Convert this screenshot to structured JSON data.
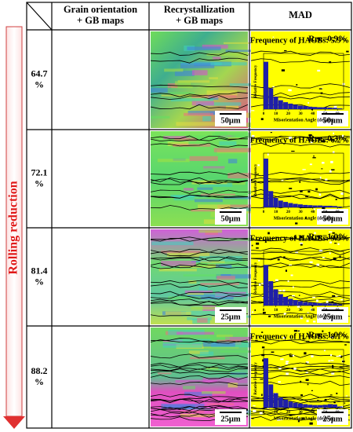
{
  "header": {
    "columns": [
      [
        "Grain orientation",
        "+ GB maps"
      ],
      [
        "Recrystallization",
        "+ GB maps"
      ],
      [
        "MAD"
      ]
    ]
  },
  "side_label": "Rolling reduction",
  "histogram_axes": {
    "x_label": "Misorientation Angle (degree)",
    "y_label": "Relative Frequency",
    "bins": [
      0,
      4,
      8,
      12,
      16,
      20,
      24,
      28,
      32,
      36,
      40,
      44,
      48,
      52,
      56,
      60,
      64
    ],
    "xlim": [
      0,
      65
    ],
    "ylim": [
      0,
      0.2
    ],
    "xticks": [
      0,
      10,
      20,
      30,
      40,
      50,
      60
    ],
    "color": "#1f1fa8"
  },
  "rows": [
    {
      "reduction": [
        "64.7",
        "%"
      ],
      "scale_bar_1": "50μm",
      "scale_bar_2": "50μm",
      "rec": "Rec=0.9%",
      "hagb": "Frequency of HAGBs: 5.9%",
      "histogram": [
        0.17,
        0.075,
        0.045,
        0.032,
        0.025,
        0.02,
        0.016,
        0.013,
        0.011,
        0.009,
        0.008,
        0.007,
        0.007,
        0.006,
        0.005,
        0.003
      ]
    },
    {
      "reduction": [
        "72.1",
        "%"
      ],
      "scale_bar_1": "50μm",
      "scale_bar_2": "50μm",
      "rec": "Rec=0.3%",
      "hagb": "Frequency of HAGBs: 6.2%",
      "histogram": [
        0.18,
        0.06,
        0.035,
        0.025,
        0.02,
        0.016,
        0.013,
        0.011,
        0.009,
        0.008,
        0.007,
        0.007,
        0.006,
        0.006,
        0.005,
        0.003
      ]
    },
    {
      "reduction": [
        "81.4",
        "%"
      ],
      "scale_bar_1": "25μm",
      "scale_bar_2": "25μm",
      "rec": "Rec=1.0%",
      "hagb": "Frequency of HAGBs: 9.9%",
      "histogram": [
        0.15,
        0.09,
        0.06,
        0.042,
        0.032,
        0.025,
        0.02,
        0.016,
        0.013,
        0.011,
        0.01,
        0.009,
        0.008,
        0.008,
        0.007,
        0.004
      ]
    },
    {
      "reduction": [
        "88.2",
        "%"
      ],
      "scale_bar_1": "25μm",
      "scale_bar_2": "25μm",
      "rec": "Rec=1.0%",
      "hagb": "Frequency of HAGBs: 8.1%",
      "histogram": [
        0.17,
        0.08,
        0.05,
        0.035,
        0.027,
        0.021,
        0.017,
        0.014,
        0.012,
        0.01,
        0.009,
        0.009,
        0.01,
        0.012,
        0.011,
        0.004
      ]
    }
  ]
}
